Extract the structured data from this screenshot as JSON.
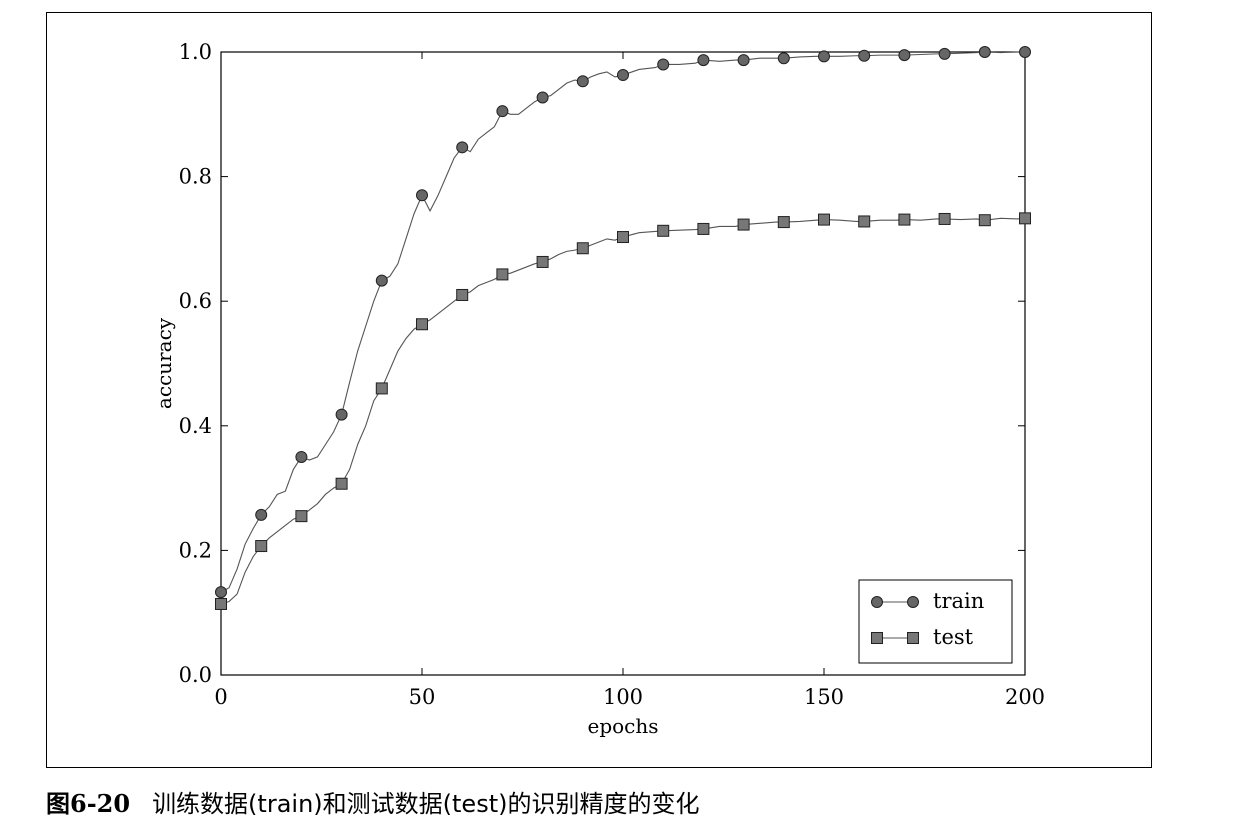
{
  "caption": {
    "number": "图6-20",
    "text": "训练数据(train)和测试数据(test)的识别精度的变化"
  },
  "chart_data": {
    "type": "line",
    "xlabel": "epochs",
    "ylabel": "accuracy",
    "xlim": [
      0,
      200
    ],
    "ylim": [
      0.0,
      1.0
    ],
    "xticks": [
      "0",
      "50",
      "100",
      "150",
      "200"
    ],
    "yticks": [
      "0.0",
      "0.2",
      "0.4",
      "0.6",
      "0.8",
      "1.0"
    ],
    "grid": false,
    "legend_position": "lower-right",
    "marker_every": 10,
    "series": [
      {
        "name": "train",
        "marker": "circle",
        "color": "#666666",
        "x": [
          0,
          2,
          4,
          6,
          8,
          10,
          12,
          14,
          16,
          18,
          20,
          22,
          24,
          26,
          28,
          30,
          32,
          34,
          36,
          38,
          40,
          42,
          44,
          46,
          48,
          50,
          52,
          54,
          56,
          58,
          60,
          62,
          64,
          66,
          68,
          70,
          72,
          74,
          76,
          78,
          80,
          82,
          84,
          86,
          88,
          90,
          92,
          94,
          96,
          98,
          100,
          104,
          108,
          110,
          114,
          118,
          120,
          124,
          128,
          130,
          134,
          138,
          140,
          144,
          148,
          150,
          154,
          158,
          160,
          164,
          168,
          170,
          174,
          178,
          180,
          184,
          188,
          190,
          194,
          198,
          200
        ],
        "values": [
          0.133,
          0.14,
          0.17,
          0.21,
          0.235,
          0.257,
          0.27,
          0.29,
          0.295,
          0.33,
          0.35,
          0.345,
          0.35,
          0.37,
          0.39,
          0.418,
          0.47,
          0.52,
          0.56,
          0.6,
          0.633,
          0.64,
          0.66,
          0.7,
          0.74,
          0.77,
          0.745,
          0.77,
          0.8,
          0.83,
          0.847,
          0.84,
          0.86,
          0.87,
          0.88,
          0.905,
          0.9,
          0.9,
          0.91,
          0.92,
          0.927,
          0.93,
          0.94,
          0.95,
          0.955,
          0.953,
          0.96,
          0.965,
          0.968,
          0.96,
          0.963,
          0.972,
          0.975,
          0.98,
          0.98,
          0.982,
          0.987,
          0.985,
          0.987,
          0.987,
          0.99,
          0.99,
          0.99,
          0.992,
          0.993,
          0.993,
          0.993,
          0.994,
          0.994,
          0.995,
          0.995,
          0.995,
          0.996,
          0.997,
          0.997,
          0.998,
          0.999,
          1.0,
          0.999,
          1.0,
          1.0
        ]
      },
      {
        "name": "test",
        "marker": "square",
        "color": "#777777",
        "x": [
          0,
          2,
          4,
          6,
          8,
          10,
          12,
          14,
          16,
          18,
          20,
          22,
          24,
          26,
          28,
          30,
          32,
          34,
          36,
          38,
          40,
          42,
          44,
          46,
          48,
          50,
          52,
          54,
          56,
          58,
          60,
          62,
          64,
          66,
          68,
          70,
          72,
          74,
          76,
          78,
          80,
          82,
          84,
          86,
          88,
          90,
          92,
          94,
          96,
          98,
          100,
          104,
          108,
          110,
          114,
          118,
          120,
          124,
          128,
          130,
          134,
          138,
          140,
          144,
          148,
          150,
          154,
          158,
          160,
          164,
          168,
          170,
          174,
          178,
          180,
          184,
          188,
          190,
          194,
          198,
          200
        ],
        "values": [
          0.114,
          0.118,
          0.13,
          0.165,
          0.19,
          0.207,
          0.22,
          0.23,
          0.24,
          0.25,
          0.255,
          0.265,
          0.275,
          0.29,
          0.3,
          0.307,
          0.33,
          0.37,
          0.4,
          0.44,
          0.46,
          0.49,
          0.52,
          0.54,
          0.555,
          0.563,
          0.57,
          0.58,
          0.59,
          0.6,
          0.61,
          0.615,
          0.625,
          0.63,
          0.635,
          0.643,
          0.645,
          0.65,
          0.655,
          0.66,
          0.663,
          0.668,
          0.675,
          0.68,
          0.682,
          0.685,
          0.69,
          0.695,
          0.7,
          0.698,
          0.703,
          0.71,
          0.712,
          0.713,
          0.714,
          0.715,
          0.716,
          0.72,
          0.72,
          0.723,
          0.725,
          0.727,
          0.727,
          0.728,
          0.73,
          0.731,
          0.73,
          0.728,
          0.728,
          0.73,
          0.73,
          0.731,
          0.73,
          0.732,
          0.732,
          0.731,
          0.732,
          0.73,
          0.733,
          0.732,
          0.733
        ]
      }
    ]
  }
}
